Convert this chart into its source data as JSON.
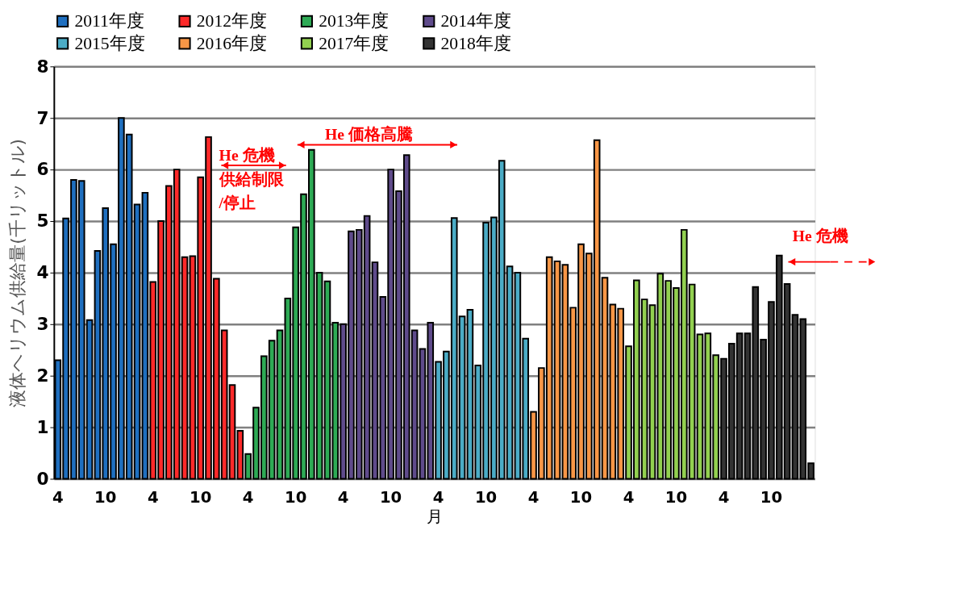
{
  "chart_data": {
    "type": "bar",
    "xlabel": "月",
    "ylabel": "液体ヘリウム供給量(千リットル)",
    "categories": [
      "4",
      null,
      null,
      null,
      null,
      null,
      "10",
      null,
      null,
      null,
      null,
      null,
      "4",
      null,
      null,
      null,
      null,
      null,
      "10",
      null,
      null,
      null,
      null,
      null,
      "4",
      null,
      null,
      null,
      null,
      null,
      "10",
      null,
      null,
      null,
      null,
      null,
      "4",
      null,
      null,
      null,
      null,
      null,
      "10",
      null,
      null,
      null,
      null,
      null,
      "4",
      null,
      null,
      null,
      null,
      null,
      "10",
      null,
      null,
      null,
      null,
      null,
      "4",
      null,
      null,
      null,
      null,
      null,
      "10",
      null,
      null,
      null,
      null,
      null,
      "4",
      null,
      null,
      null,
      null,
      null,
      "10",
      null,
      null,
      null,
      null,
      null,
      "4",
      null,
      null,
      null,
      null,
      null,
      "10",
      null,
      null,
      null,
      null,
      null
    ],
    "series": [
      {
        "name": "2011年度",
        "color": "#1f6fbf",
        "values": [
          2.3,
          5.05,
          5.8,
          5.78,
          3.08,
          4.42,
          5.25,
          4.55,
          7.0,
          6.68,
          5.32,
          5.55,
          null,
          null,
          null,
          null,
          null,
          null,
          null,
          null,
          null,
          null,
          null,
          null,
          null,
          null,
          null,
          null,
          null,
          null,
          null,
          null,
          null,
          null,
          null,
          null,
          null,
          null,
          null,
          null,
          null,
          null,
          null,
          null,
          null,
          null,
          null,
          null,
          null,
          null,
          null,
          null,
          null,
          null,
          null,
          null,
          null,
          null,
          null,
          null,
          null,
          null,
          null,
          null,
          null,
          null,
          null,
          null,
          null,
          null,
          null,
          null,
          null,
          null,
          null,
          null,
          null,
          null,
          null,
          null,
          null,
          null,
          null,
          null,
          null,
          null,
          null,
          null,
          null,
          null,
          null,
          null,
          null,
          null,
          null,
          null
        ]
      },
      {
        "name": "2012年度",
        "color": "#ff2a2a",
        "values": [
          null,
          null,
          null,
          null,
          null,
          null,
          null,
          null,
          null,
          null,
          null,
          null,
          3.82,
          5.0,
          5.68,
          6.0,
          4.3,
          4.32,
          5.85,
          6.63,
          3.88,
          2.88,
          1.82,
          0.93,
          null,
          null,
          null,
          null,
          null,
          null,
          null,
          null,
          null,
          null,
          null,
          null,
          null,
          null,
          null,
          null,
          null,
          null,
          null,
          null,
          null,
          null,
          null,
          null,
          null,
          null,
          null,
          null,
          null,
          null,
          null,
          null,
          null,
          null,
          null,
          null,
          null,
          null,
          null,
          null,
          null,
          null,
          null,
          null,
          null,
          null,
          null,
          null,
          null,
          null,
          null,
          null,
          null,
          null,
          null,
          null,
          null,
          null,
          null,
          null,
          null,
          null,
          null,
          null,
          null,
          null,
          null,
          null,
          null,
          null,
          null,
          null
        ]
      },
      {
        "name": "2013年度",
        "color": "#2eaa55",
        "values": [
          null,
          null,
          null,
          null,
          null,
          null,
          null,
          null,
          null,
          null,
          null,
          null,
          null,
          null,
          null,
          null,
          null,
          null,
          null,
          null,
          null,
          null,
          null,
          null,
          0.48,
          1.38,
          2.38,
          2.68,
          2.88,
          3.5,
          4.88,
          5.52,
          6.38,
          4.0,
          3.83,
          3.03,
          null,
          null,
          null,
          null,
          null,
          null,
          null,
          null,
          null,
          null,
          null,
          null,
          null,
          null,
          null,
          null,
          null,
          null,
          null,
          null,
          null,
          null,
          null,
          null,
          null,
          null,
          null,
          null,
          null,
          null,
          null,
          null,
          null,
          null,
          null,
          null,
          null,
          null,
          null,
          null,
          null,
          null,
          null,
          null,
          null,
          null,
          null,
          null,
          null,
          null,
          null,
          null,
          null,
          null,
          null,
          null,
          null,
          null,
          null,
          null
        ]
      },
      {
        "name": "2014年度",
        "color": "#5f4b8b",
        "values": [
          null,
          null,
          null,
          null,
          null,
          null,
          null,
          null,
          null,
          null,
          null,
          null,
          null,
          null,
          null,
          null,
          null,
          null,
          null,
          null,
          null,
          null,
          null,
          null,
          null,
          null,
          null,
          null,
          null,
          null,
          null,
          null,
          null,
          null,
          null,
          null,
          3.0,
          4.8,
          4.83,
          5.1,
          4.2,
          3.53,
          6.0,
          5.58,
          6.28,
          2.88,
          2.52,
          3.03,
          null,
          null,
          null,
          null,
          null,
          null,
          null,
          null,
          null,
          null,
          null,
          null,
          null,
          null,
          null,
          null,
          null,
          null,
          null,
          null,
          null,
          null,
          null,
          null,
          null,
          null,
          null,
          null,
          null,
          null,
          null,
          null,
          null,
          null,
          null,
          null,
          null,
          null,
          null,
          null,
          null,
          null,
          null,
          null,
          null,
          null,
          null,
          null
        ]
      },
      {
        "name": "2015年度",
        "color": "#4bacc6",
        "values": [
          null,
          null,
          null,
          null,
          null,
          null,
          null,
          null,
          null,
          null,
          null,
          null,
          null,
          null,
          null,
          null,
          null,
          null,
          null,
          null,
          null,
          null,
          null,
          null,
          null,
          null,
          null,
          null,
          null,
          null,
          null,
          null,
          null,
          null,
          null,
          null,
          null,
          null,
          null,
          null,
          null,
          null,
          null,
          null,
          null,
          null,
          null,
          null,
          2.27,
          2.47,
          5.06,
          3.15,
          3.28,
          2.2,
          4.97,
          5.07,
          6.17,
          4.12,
          4.0,
          2.72,
          null,
          null,
          null,
          null,
          null,
          null,
          null,
          null,
          null,
          null,
          null,
          null,
          null,
          null,
          null,
          null,
          null,
          null,
          null,
          null,
          null,
          null,
          null,
          null,
          null,
          null,
          null,
          null,
          null,
          null,
          null,
          null,
          null,
          null,
          null,
          null
        ]
      },
      {
        "name": "2016年度",
        "color": "#f79646",
        "values": [
          null,
          null,
          null,
          null,
          null,
          null,
          null,
          null,
          null,
          null,
          null,
          null,
          null,
          null,
          null,
          null,
          null,
          null,
          null,
          null,
          null,
          null,
          null,
          null,
          null,
          null,
          null,
          null,
          null,
          null,
          null,
          null,
          null,
          null,
          null,
          null,
          null,
          null,
          null,
          null,
          null,
          null,
          null,
          null,
          null,
          null,
          null,
          null,
          null,
          null,
          null,
          null,
          null,
          null,
          null,
          null,
          null,
          null,
          null,
          null,
          1.3,
          2.15,
          4.3,
          4.22,
          4.15,
          3.32,
          4.55,
          4.37,
          6.57,
          3.9,
          3.38,
          3.3,
          null,
          null,
          null,
          null,
          null,
          null,
          null,
          null,
          null,
          null,
          null,
          null,
          null,
          null,
          null,
          null,
          null,
          null,
          null,
          null,
          null,
          null,
          null,
          null
        ]
      },
      {
        "name": "2017年度",
        "color": "#92d050",
        "values": [
          null,
          null,
          null,
          null,
          null,
          null,
          null,
          null,
          null,
          null,
          null,
          null,
          null,
          null,
          null,
          null,
          null,
          null,
          null,
          null,
          null,
          null,
          null,
          null,
          null,
          null,
          null,
          null,
          null,
          null,
          null,
          null,
          null,
          null,
          null,
          null,
          null,
          null,
          null,
          null,
          null,
          null,
          null,
          null,
          null,
          null,
          null,
          null,
          null,
          null,
          null,
          null,
          null,
          null,
          null,
          null,
          null,
          null,
          null,
          null,
          null,
          null,
          null,
          null,
          null,
          null,
          null,
          null,
          null,
          null,
          null,
          null,
          2.57,
          3.85,
          3.48,
          3.37,
          3.98,
          3.84,
          3.7,
          4.83,
          3.77,
          2.8,
          2.82,
          2.4,
          null,
          null,
          null,
          null,
          null,
          null,
          null,
          null,
          null,
          null,
          null,
          null
        ]
      },
      {
        "name": "2018年度",
        "color": "#333333",
        "values": [
          null,
          null,
          null,
          null,
          null,
          null,
          null,
          null,
          null,
          null,
          null,
          null,
          null,
          null,
          null,
          null,
          null,
          null,
          null,
          null,
          null,
          null,
          null,
          null,
          null,
          null,
          null,
          null,
          null,
          null,
          null,
          null,
          null,
          null,
          null,
          null,
          null,
          null,
          null,
          null,
          null,
          null,
          null,
          null,
          null,
          null,
          null,
          null,
          null,
          null,
          null,
          null,
          null,
          null,
          null,
          null,
          null,
          null,
          null,
          null,
          null,
          null,
          null,
          null,
          null,
          null,
          null,
          null,
          null,
          null,
          null,
          null,
          null,
          null,
          null,
          null,
          null,
          null,
          null,
          null,
          null,
          null,
          null,
          null,
          2.33,
          2.62,
          2.82,
          2.82,
          3.72,
          2.7,
          3.43,
          4.33,
          3.78,
          3.18,
          3.1,
          0.3
        ]
      }
    ],
    "ylim": [
      0,
      8
    ],
    "yticks": [
      0,
      1,
      2,
      3,
      4,
      5,
      6,
      7,
      8
    ],
    "grid": "y",
    "legend": "top",
    "annotations": [
      "He 危機",
      "供給制限",
      "/停止",
      "He 価格高騰",
      "He 危機"
    ]
  }
}
